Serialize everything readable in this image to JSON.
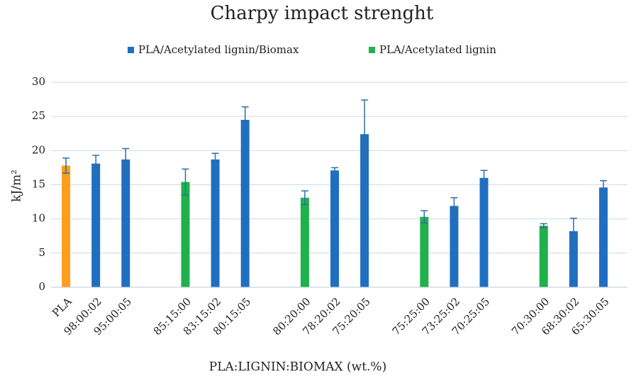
{
  "chart_data": {
    "type": "bar",
    "title": "Charpy impact strenght",
    "y_label": "kJ/m²",
    "x_label": "PLA:LIGNIN:BIOMAX (wt.%)",
    "categories": [
      "PLA",
      "98:00:02",
      "95:00:05",
      null,
      "85:15:00",
      "83:15:02",
      "80:15:05",
      null,
      "80:20:00",
      "78:20:02",
      "75:20:05",
      null,
      "75:25:00",
      "73:25:02",
      "70:25:05",
      null,
      "70:30:00",
      "68:30:02",
      "65:30:05"
    ],
    "series": [
      {
        "name": "PLA/Acetylated lignin/Biomax",
        "color": "#1f6fc1",
        "point_colors": [
          {
            "index": 0,
            "color": "#ff9e1b"
          }
        ],
        "values": [
          17.8,
          18.1,
          18.7,
          null,
          null,
          18.7,
          24.5,
          null,
          null,
          17.1,
          22.4,
          null,
          null,
          11.9,
          16.0,
          null,
          null,
          8.2,
          14.6
        ],
        "errors": [
          1.1,
          1.2,
          1.6,
          null,
          null,
          0.9,
          1.9,
          null,
          null,
          0.4,
          5.0,
          null,
          null,
          1.2,
          1.1,
          null,
          null,
          1.9,
          1.0
        ]
      },
      {
        "name": "PLA/Acetylated lignin",
        "color": "#1fb14c",
        "values": [
          null,
          null,
          null,
          null,
          15.4,
          null,
          null,
          null,
          13.1,
          null,
          null,
          null,
          10.3,
          null,
          null,
          null,
          9.0,
          null,
          null
        ],
        "errors": [
          null,
          null,
          null,
          null,
          1.9,
          null,
          null,
          null,
          1.0,
          null,
          null,
          null,
          0.9,
          null,
          null,
          null,
          0.3,
          null,
          null
        ]
      }
    ],
    "error_color": "#2f6ea8",
    "ylim": [
      0,
      30
    ],
    "yticks": [
      0,
      5,
      10,
      15,
      20,
      25,
      30
    ],
    "grid": true,
    "legend": "top"
  }
}
